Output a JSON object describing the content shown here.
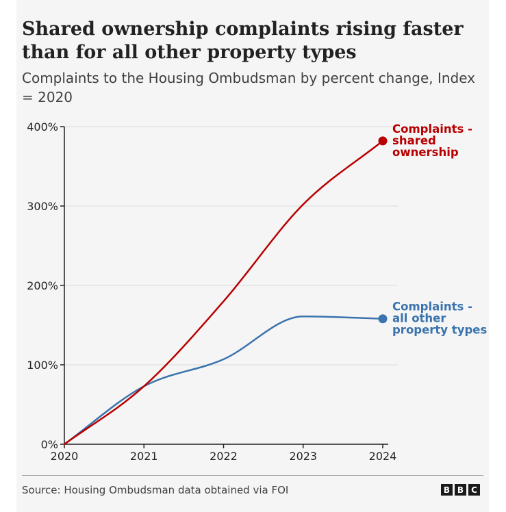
{
  "title": "Shared ownership complaints rising faster than for all other property types",
  "subtitle": "Complaints to the Housing Ombudsman by percent change, Index = 2020",
  "source": "Source: Housing Ombudsman data obtained via FOI",
  "logo": {
    "letters": [
      "B",
      "B",
      "C"
    ]
  },
  "chart_data": {
    "type": "line",
    "x": [
      2020,
      2021,
      2022,
      2023,
      2024
    ],
    "xlim": [
      2020,
      2024
    ],
    "ylim": [
      0,
      400
    ],
    "y_ticks": [
      0,
      100,
      200,
      300,
      400
    ],
    "y_tick_labels": [
      "0%",
      "100%",
      "200%",
      "300%",
      "400%"
    ],
    "x_tick_labels": [
      "2020",
      "2021",
      "2022",
      "2023",
      "2024"
    ],
    "grid": true,
    "legend": "end-of-line labels",
    "series": [
      {
        "name": "Complaints - shared ownership",
        "label_lines": [
          "Complaints -",
          "shared",
          "ownership"
        ],
        "color": "#b80000",
        "values": [
          0,
          73,
          180,
          302,
          382
        ]
      },
      {
        "name": "Complaints - all other property types",
        "label_lines": [
          "Complaints -",
          "all other",
          "property types"
        ],
        "color": "#3a73ad",
        "values": [
          0,
          73,
          107,
          161,
          158
        ]
      }
    ]
  }
}
